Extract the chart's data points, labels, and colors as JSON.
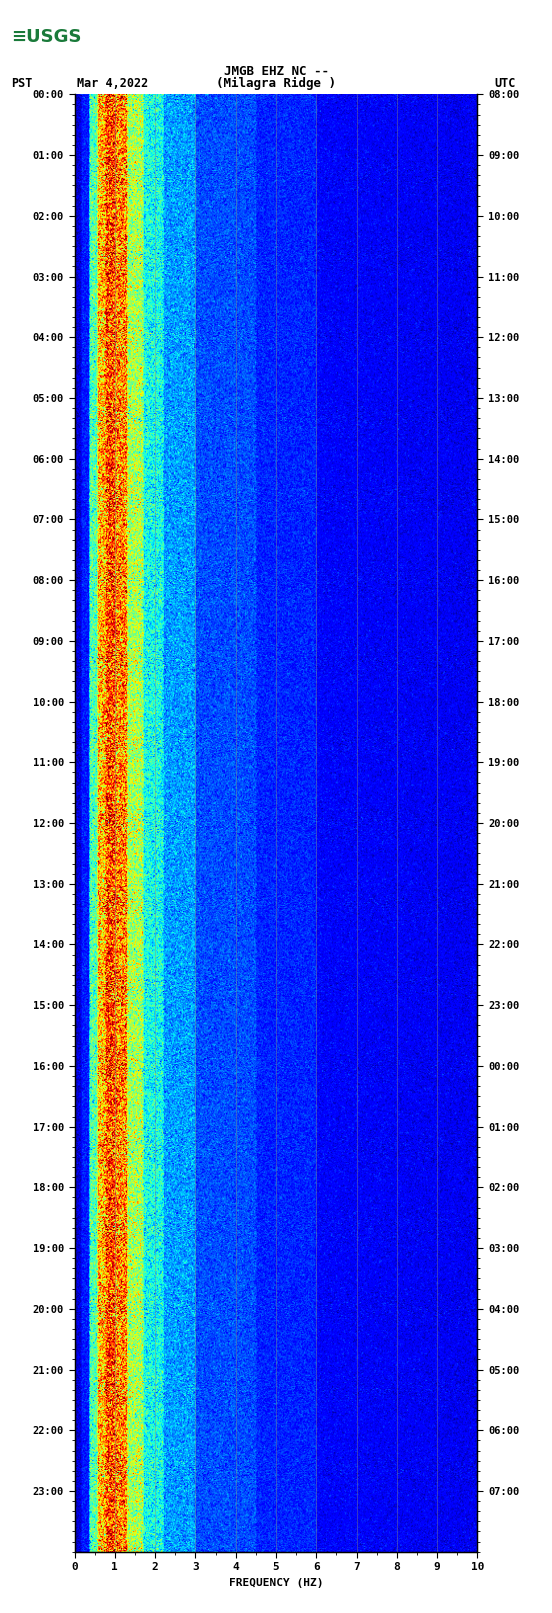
{
  "title_line1": "JMGB EHZ NC --",
  "title_line2": "(Milagra Ridge )",
  "left_label": "PST",
  "date_label": "Mar 4,2022",
  "right_label": "UTC",
  "xlabel": "FREQUENCY (HZ)",
  "freq_min": 0,
  "freq_max": 10,
  "pst_ticks": [
    "00:00",
    "01:00",
    "02:00",
    "03:00",
    "04:00",
    "05:00",
    "06:00",
    "07:00",
    "08:00",
    "09:00",
    "10:00",
    "11:00",
    "12:00",
    "13:00",
    "14:00",
    "15:00",
    "16:00",
    "17:00",
    "18:00",
    "19:00",
    "20:00",
    "21:00",
    "22:00",
    "23:00"
  ],
  "utc_ticks": [
    "08:00",
    "09:00",
    "10:00",
    "11:00",
    "12:00",
    "13:00",
    "14:00",
    "15:00",
    "16:00",
    "17:00",
    "18:00",
    "19:00",
    "20:00",
    "21:00",
    "22:00",
    "23:00",
    "00:00",
    "01:00",
    "02:00",
    "03:00",
    "04:00",
    "05:00",
    "06:00",
    "07:00"
  ],
  "freq_ticks": [
    0,
    1,
    2,
    3,
    4,
    5,
    6,
    7,
    8,
    9,
    10
  ],
  "bg_color": "#ffffff",
  "grid_color": "#888888",
  "usgs_color": "#1a7a3a"
}
